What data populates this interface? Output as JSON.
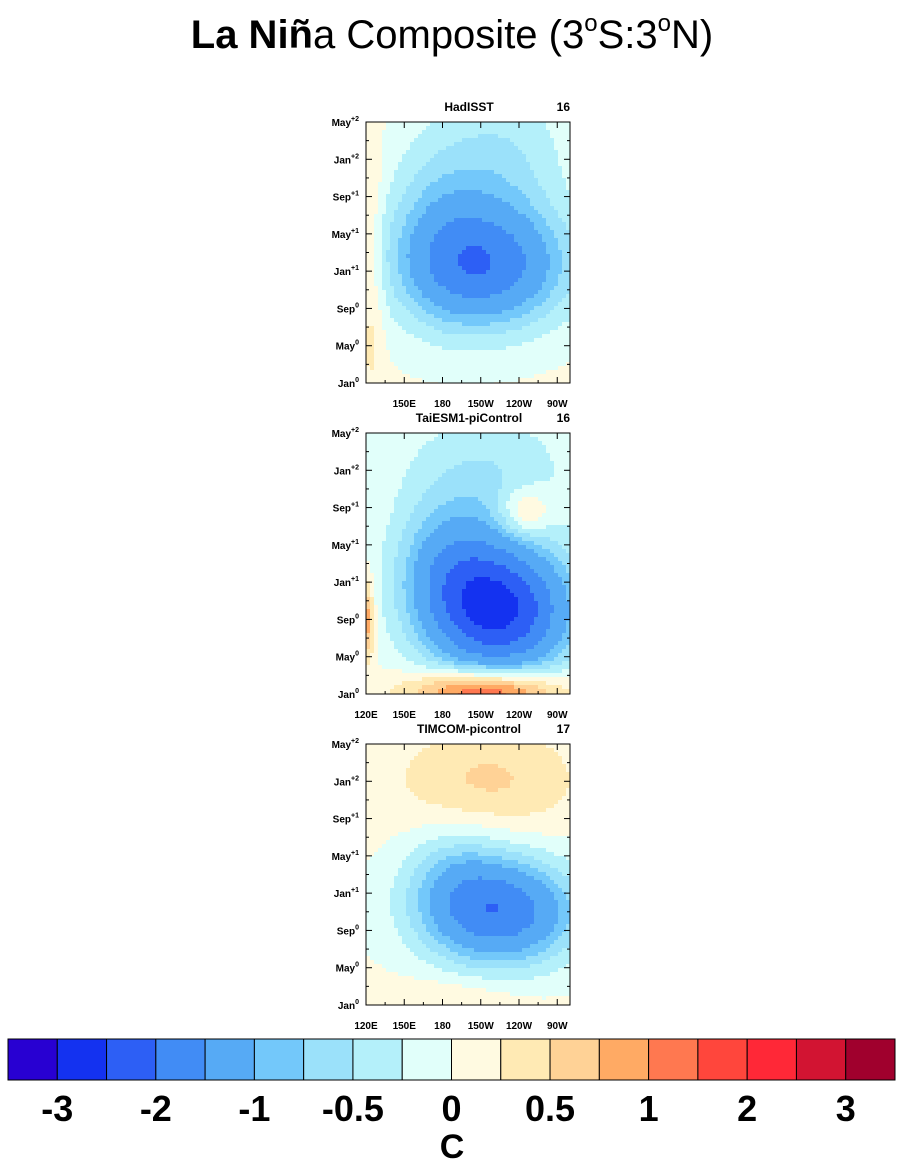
{
  "title": {
    "bold": "La Niñ",
    "rest": "a Composite (3",
    "o1": "o",
    "s": "S:3",
    "o2": "o",
    "n": "N)"
  },
  "chart_data": {
    "type": "heatmap",
    "title": "La Niña Composite (3°S:3°N)",
    "panels": [
      {
        "name": "HadISST",
        "count": "16",
        "x_ticks": [
          "150E",
          "180",
          "150W",
          "120W",
          "90W"
        ],
        "x_values": [
          150,
          180,
          210,
          240,
          270
        ],
        "xlim": [
          120,
          280
        ],
        "y_ticks": [
          {
            "m": "Jan",
            "s": "0",
            "v": 0
          },
          {
            "m": "May",
            "s": "0",
            "v": 4
          },
          {
            "m": "Sep",
            "s": "0",
            "v": 8
          },
          {
            "m": "Jan",
            "s": "+1",
            "v": 12
          },
          {
            "m": "May",
            "s": "+1",
            "v": 16
          },
          {
            "m": "Sep",
            "s": "+1",
            "v": 20
          },
          {
            "m": "Jan",
            "s": "+2",
            "v": 24
          },
          {
            "m": "May",
            "s": "+2",
            "v": 28
          }
        ],
        "ylim": [
          0,
          28
        ],
        "features": [
          {
            "x": 214,
            "y": 12.5,
            "sx": 45,
            "sy": 4.6,
            "amp": -1.8
          },
          {
            "x": 178,
            "y": 18,
            "sx": 30,
            "sy": 7,
            "amp": -0.6
          },
          {
            "x": 232,
            "y": 24,
            "sx": 34,
            "sy": 6,
            "amp": -0.5
          },
          {
            "x": 124,
            "y": 9,
            "sx": 7,
            "sy": 8,
            "amp": 0.35
          },
          {
            "x": 124,
            "y": 24,
            "sx": 6,
            "sy": 5,
            "amp": 0.2
          }
        ]
      },
      {
        "name": "TaiESM1-piControl",
        "count": "16",
        "x_ticks": [
          "120E",
          "150E",
          "180",
          "150W",
          "120W",
          "90W"
        ],
        "x_values": [
          120,
          150,
          180,
          210,
          240,
          270
        ],
        "xlim": [
          120,
          280
        ],
        "y_ticks": [
          {
            "m": "Jan",
            "s": "0",
            "v": 0
          },
          {
            "m": "May",
            "s": "0",
            "v": 4
          },
          {
            "m": "Sep",
            "s": "0",
            "v": 8
          },
          {
            "m": "Jan",
            "s": "+1",
            "v": 12
          },
          {
            "m": "May",
            "s": "+1",
            "v": 16
          },
          {
            "m": "Sep",
            "s": "+1",
            "v": 20
          },
          {
            "m": "Jan",
            "s": "+2",
            "v": 24
          },
          {
            "m": "May",
            "s": "+2",
            "v": 28
          }
        ],
        "ylim": [
          0,
          28
        ],
        "features": [
          {
            "x": 225,
            "y": 9,
            "sx": 40,
            "sy": 5,
            "amp": -2.6
          },
          {
            "x": 185,
            "y": 14,
            "sx": 30,
            "sy": 5,
            "amp": -0.9
          },
          {
            "x": 215,
            "y": 24,
            "sx": 50,
            "sy": 5,
            "amp": -0.5
          },
          {
            "x": 215,
            "y": 0.3,
            "sx": 40,
            "sy": 1.6,
            "amp": 1.6
          },
          {
            "x": 245,
            "y": 19.5,
            "sx": 14,
            "sy": 1.8,
            "amp": 0.7
          },
          {
            "x": 121,
            "y": 8,
            "sx": 4,
            "sy": 3,
            "amp": 0.9
          }
        ]
      },
      {
        "name": "TIMCOM-picontrol",
        "count": "17",
        "x_ticks": [
          "120E",
          "150E",
          "180",
          "150W",
          "120W",
          "90W"
        ],
        "x_values": [
          120,
          150,
          180,
          210,
          240,
          270
        ],
        "xlim": [
          120,
          280
        ],
        "y_ticks": [
          {
            "m": "Jan",
            "s": "0",
            "v": 0
          },
          {
            "m": "May",
            "s": "0",
            "v": 4
          },
          {
            "m": "Sep",
            "s": "0",
            "v": 8
          },
          {
            "m": "Jan",
            "s": "+1",
            "v": 12
          },
          {
            "m": "May",
            "s": "+1",
            "v": 16
          },
          {
            "m": "Sep",
            "s": "+1",
            "v": 20
          },
          {
            "m": "Jan",
            "s": "+2",
            "v": 24
          },
          {
            "m": "May",
            "s": "+2",
            "v": 28
          }
        ],
        "ylim": [
          0,
          28
        ],
        "features": [
          {
            "x": 225,
            "y": 10,
            "sx": 42,
            "sy": 4,
            "amp": -1.9
          },
          {
            "x": 190,
            "y": 14,
            "sx": 28,
            "sy": 4,
            "amp": -0.5
          },
          {
            "x": 215,
            "y": 24,
            "sx": 48,
            "sy": 4,
            "amp": 0.5
          },
          {
            "x": 190,
            "y": 1,
            "sx": 40,
            "sy": 1.5,
            "amp": 0.2
          }
        ]
      }
    ],
    "colorbar": {
      "colors": [
        "#2800d2",
        "#1432f0",
        "#2d5ff5",
        "#418cf5",
        "#56aaf5",
        "#73c8fa",
        "#9be1fa",
        "#b4f0fa",
        "#e1fffa",
        "#fffae1",
        "#ffeab4",
        "#ffd296",
        "#ffaa64",
        "#ff7850",
        "#ff463c",
        "#ff2837",
        "#d21432",
        "#a0002d"
      ],
      "tick_labels": [
        "-3",
        "-2",
        "-1",
        "-0.5",
        "0",
        "0.5",
        "1",
        "2",
        "3"
      ],
      "label": "C"
    }
  }
}
